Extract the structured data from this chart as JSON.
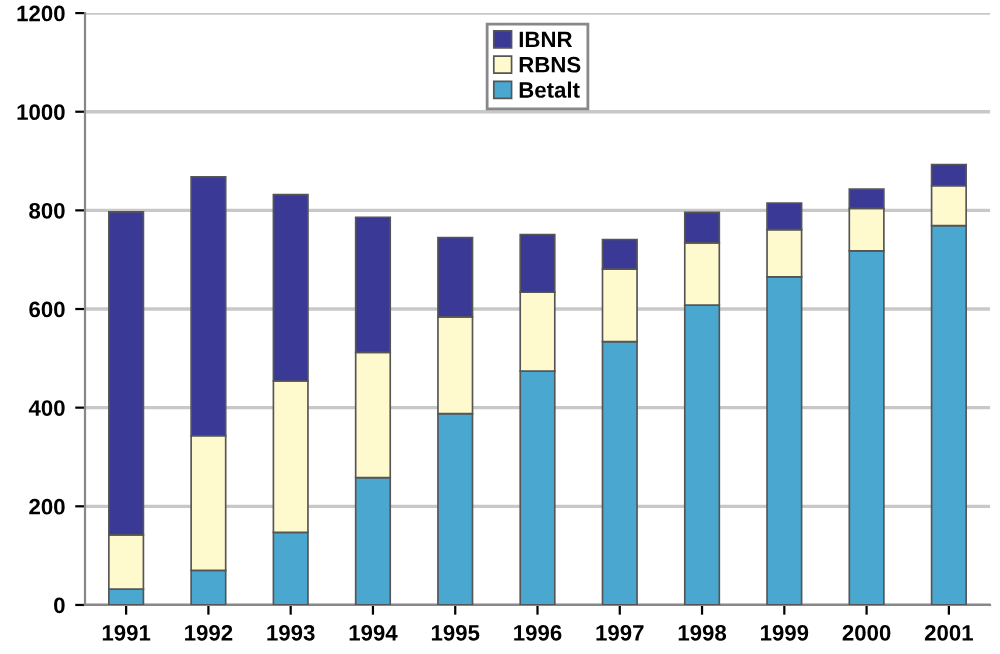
{
  "chart_data": {
    "type": "bar",
    "stacked": true,
    "categories": [
      "1991",
      "1992",
      "1993",
      "1994",
      "1995",
      "1996",
      "1997",
      "1998",
      "1999",
      "2000",
      "2001"
    ],
    "series": [
      {
        "name": "Betalt",
        "color": "#4aa8d0",
        "values": [
          32,
          70,
          147,
          258,
          388,
          474,
          534,
          608,
          665,
          718,
          769
        ]
      },
      {
        "name": "RBNS",
        "color": "#fffacd",
        "values": [
          110,
          273,
          307,
          254,
          196,
          160,
          147,
          126,
          96,
          86,
          81
        ]
      },
      {
        "name": "IBNR",
        "color": "#3a3a96",
        "values": [
          655,
          525,
          378,
          274,
          161,
          117,
          60,
          62,
          54,
          39,
          43
        ]
      }
    ],
    "ylim": [
      0,
      1200
    ],
    "yticks": [
      0,
      200,
      400,
      600,
      800,
      1000,
      1200
    ],
    "grid": "y",
    "legend": "top"
  }
}
